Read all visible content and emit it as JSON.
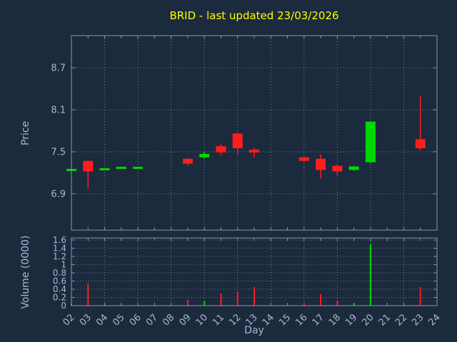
{
  "title": "BRID - last updated 23/03/2026",
  "colors": {
    "background": "#1b2a3d",
    "title": "#ffff00",
    "axis_text": "#a9b8cf",
    "frame": "#8496af",
    "grid": "#71808f",
    "up": "#00d800",
    "down": "#ff1d1d"
  },
  "chart_data": {
    "type": "candlestick",
    "title": "BRID - last updated 23/03/2026",
    "xlabel": "Day",
    "legend": "none",
    "grid": "dotted",
    "x_axis": {
      "tick_labels": [
        "02",
        "03",
        "04",
        "05",
        "06",
        "07",
        "08",
        "09",
        "10",
        "11",
        "12",
        "13",
        "14",
        "15",
        "16",
        "17",
        "18",
        "19",
        "20",
        "21",
        "22",
        "23",
        "24"
      ],
      "range": [
        2,
        24
      ],
      "grid_step": 2
    },
    "price_axis": {
      "label": "Price",
      "tick_values": [
        6.9,
        7.5,
        8.1,
        8.7
      ],
      "tick_labels": [
        "6.9",
        "7.5",
        "8.1",
        "8.7"
      ],
      "range": [
        6.38,
        9.16
      ]
    },
    "volume_axis": {
      "label": "Volume (0000)",
      "tick_values": [
        0,
        0.2,
        0.4,
        0.6,
        0.8,
        1.0,
        1.2,
        1.4,
        1.6
      ],
      "tick_labels": [
        "0",
        "0.2",
        "0.4",
        "0.6",
        "0.8",
        "1",
        "1.2",
        "1.4",
        "1.6"
      ],
      "range": [
        0,
        1.65
      ]
    },
    "candles": [
      {
        "day": 2,
        "open": 7.24,
        "high": 7.24,
        "low": 7.24,
        "close": 7.24,
        "volume": 0.05
      },
      {
        "day": 3,
        "open": 7.37,
        "high": 7.37,
        "low": 6.97,
        "close": 7.22,
        "volume": 0.55
      },
      {
        "day": 4,
        "open": 7.25,
        "high": 7.25,
        "low": 7.25,
        "close": 7.25,
        "volume": 0.02
      },
      {
        "day": 5,
        "open": 7.27,
        "high": 7.27,
        "low": 7.27,
        "close": 7.27,
        "volume": 0.03
      },
      {
        "day": 6,
        "open": 7.27,
        "high": 7.27,
        "low": 7.27,
        "close": 7.27,
        "volume": 0.0
      },
      {
        "day": 9,
        "open": 7.4,
        "high": 7.41,
        "low": 7.3,
        "close": 7.33,
        "volume": 0.15
      },
      {
        "day": 10,
        "open": 7.42,
        "high": 7.5,
        "low": 7.4,
        "close": 7.47,
        "volume": 0.1
      },
      {
        "day": 11,
        "open": 7.58,
        "high": 7.61,
        "low": 7.45,
        "close": 7.49,
        "volume": 0.3
      },
      {
        "day": 12,
        "open": 7.76,
        "high": 7.78,
        "low": 7.46,
        "close": 7.55,
        "volume": 0.35
      },
      {
        "day": 13,
        "open": 7.53,
        "high": 7.56,
        "low": 7.42,
        "close": 7.49,
        "volume": 0.45
      },
      {
        "day": 16,
        "open": 7.42,
        "high": 7.43,
        "low": 7.35,
        "close": 7.37,
        "volume": 0.07
      },
      {
        "day": 17,
        "open": 7.4,
        "high": 7.46,
        "low": 7.12,
        "close": 7.24,
        "volume": 0.28
      },
      {
        "day": 18,
        "open": 7.3,
        "high": 7.31,
        "low": 7.17,
        "close": 7.22,
        "volume": 0.12
      },
      {
        "day": 19,
        "open": 7.24,
        "high": 7.3,
        "low": 7.23,
        "close": 7.29,
        "volume": 0.06
      },
      {
        "day": 20,
        "open": 7.35,
        "high": 7.94,
        "low": 7.34,
        "close": 7.93,
        "volume": 1.5
      },
      {
        "day": 23,
        "open": 7.68,
        "high": 8.3,
        "low": 7.52,
        "close": 7.55,
        "volume": 0.45
      }
    ]
  }
}
